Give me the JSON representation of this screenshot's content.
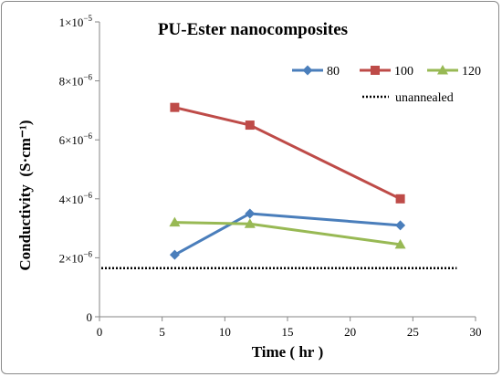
{
  "chart_data": {
    "type": "line",
    "title": "PU-Ester nanocomposites",
    "xlabel": "Time ( hr )",
    "ylabel": "Conductivity  (S·cm⁻¹)",
    "xlim": [
      0,
      30
    ],
    "ylim": [
      0,
      1e-05
    ],
    "x_ticks": [
      0,
      5,
      10,
      15,
      20,
      25,
      30
    ],
    "x_tick_labels": [
      "0",
      "5",
      "10",
      "15",
      "20",
      "25",
      "30"
    ],
    "y_ticks": [
      0,
      2e-06,
      4e-06,
      6e-06,
      8e-06,
      1e-05
    ],
    "y_tick_labels": [
      {
        "mantissa": "0",
        "exp": ""
      },
      {
        "mantissa": "2×10",
        "exp": "−6"
      },
      {
        "mantissa": "4×10",
        "exp": "−6"
      },
      {
        "mantissa": "6×10",
        "exp": "−6"
      },
      {
        "mantissa": "8×10",
        "exp": "−6"
      },
      {
        "mantissa": "1×10",
        "exp": "−5"
      }
    ],
    "grid": false,
    "legend_position": "top-right",
    "series": [
      {
        "name": "80",
        "color": "#4a7ebb",
        "marker": "diamond",
        "x": [
          6,
          12,
          24
        ],
        "y": [
          2.1e-06,
          3.5e-06,
          3.1e-06
        ]
      },
      {
        "name": "100",
        "color": "#be4b48",
        "marker": "square",
        "x": [
          6,
          12,
          24
        ],
        "y": [
          7.1e-06,
          6.5e-06,
          4e-06
        ]
      },
      {
        "name": "120",
        "color": "#98b954",
        "marker": "triangle",
        "x": [
          6,
          12,
          24
        ],
        "y": [
          3.2e-06,
          3.15e-06,
          2.45e-06
        ]
      }
    ],
    "reference_line": {
      "name": "unannealed",
      "value": 1.65e-06,
      "style": "dotted",
      "color": "#000000",
      "x_range": [
        0,
        28.5
      ]
    }
  }
}
